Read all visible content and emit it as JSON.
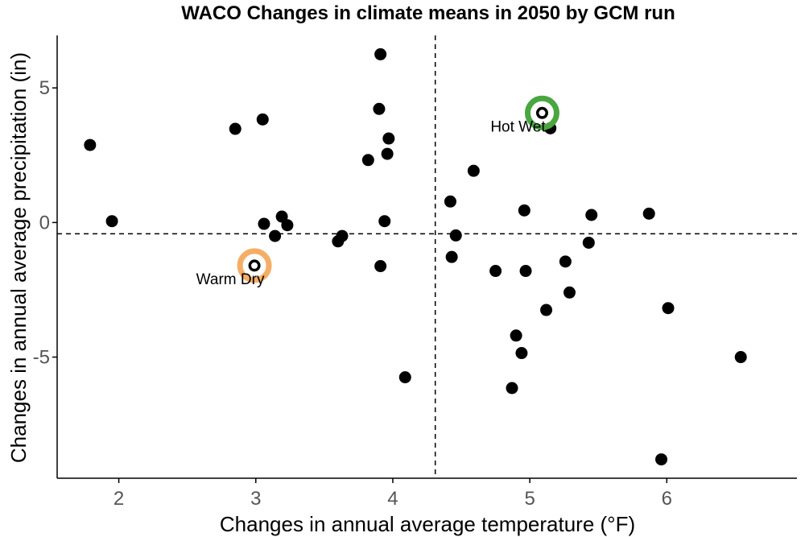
{
  "chart_data": {
    "type": "scatter",
    "title": "WACO Changes in climate means in 2050 by GCM run",
    "xlabel": "Changes in annual average temperature (°F)",
    "ylabel": "Changes in annual average precipitation (in)",
    "xlim": [
      1.55,
      6.95
    ],
    "ylim": [
      -9.5,
      6.95
    ],
    "x_ticks": [
      2,
      3,
      4,
      5,
      6
    ],
    "y_ticks": [
      5,
      0,
      -5
    ],
    "grid": false,
    "reference_lines": {
      "vertical_x": 4.31,
      "horizontal_y": -0.42
    },
    "points": [
      {
        "x": 1.79,
        "y": 2.88
      },
      {
        "x": 1.95,
        "y": 0.05
      },
      {
        "x": 2.85,
        "y": 3.48
      },
      {
        "x": 3.05,
        "y": 3.83
      },
      {
        "x": 3.06,
        "y": -0.05
      },
      {
        "x": 3.14,
        "y": -0.5
      },
      {
        "x": 3.19,
        "y": 0.22
      },
      {
        "x": 3.23,
        "y": -0.1
      },
      {
        "x": 2.99,
        "y": -1.6
      },
      {
        "x": 3.6,
        "y": -0.7
      },
      {
        "x": 3.63,
        "y": -0.5
      },
      {
        "x": 3.82,
        "y": 2.32
      },
      {
        "x": 3.9,
        "y": 4.22
      },
      {
        "x": 3.91,
        "y": 6.25
      },
      {
        "x": 3.91,
        "y": -1.62
      },
      {
        "x": 3.94,
        "y": 0.05
      },
      {
        "x": 3.96,
        "y": 2.55
      },
      {
        "x": 3.97,
        "y": 3.12
      },
      {
        "x": 4.09,
        "y": -5.75
      },
      {
        "x": 4.42,
        "y": 0.78
      },
      {
        "x": 4.43,
        "y": -1.28
      },
      {
        "x": 4.46,
        "y": -0.48
      },
      {
        "x": 4.59,
        "y": 1.92
      },
      {
        "x": 4.75,
        "y": -1.8
      },
      {
        "x": 4.87,
        "y": -6.15
      },
      {
        "x": 4.9,
        "y": -4.2
      },
      {
        "x": 4.94,
        "y": -4.85
      },
      {
        "x": 4.96,
        "y": 0.45
      },
      {
        "x": 4.97,
        "y": -1.8
      },
      {
        "x": 5.09,
        "y": 4.07
      },
      {
        "x": 5.12,
        "y": -3.25
      },
      {
        "x": 5.15,
        "y": 3.5
      },
      {
        "x": 5.26,
        "y": -1.45
      },
      {
        "x": 5.29,
        "y": -2.6
      },
      {
        "x": 5.43,
        "y": -0.75
      },
      {
        "x": 5.45,
        "y": 0.28
      },
      {
        "x": 5.87,
        "y": 0.33
      },
      {
        "x": 5.96,
        "y": -8.8
      },
      {
        "x": 6.01,
        "y": -3.18
      },
      {
        "x": 6.54,
        "y": -5.0
      }
    ],
    "highlights": [
      {
        "label": "Hot Wet",
        "x": 5.09,
        "y": 4.07,
        "color": "#4aa640"
      },
      {
        "label": "Warm Dry",
        "x": 2.99,
        "y": -1.6,
        "color": "#f5ae65"
      }
    ]
  },
  "colors": {
    "points": "#000000",
    "axis": "#000000",
    "ticks": "#555555"
  }
}
